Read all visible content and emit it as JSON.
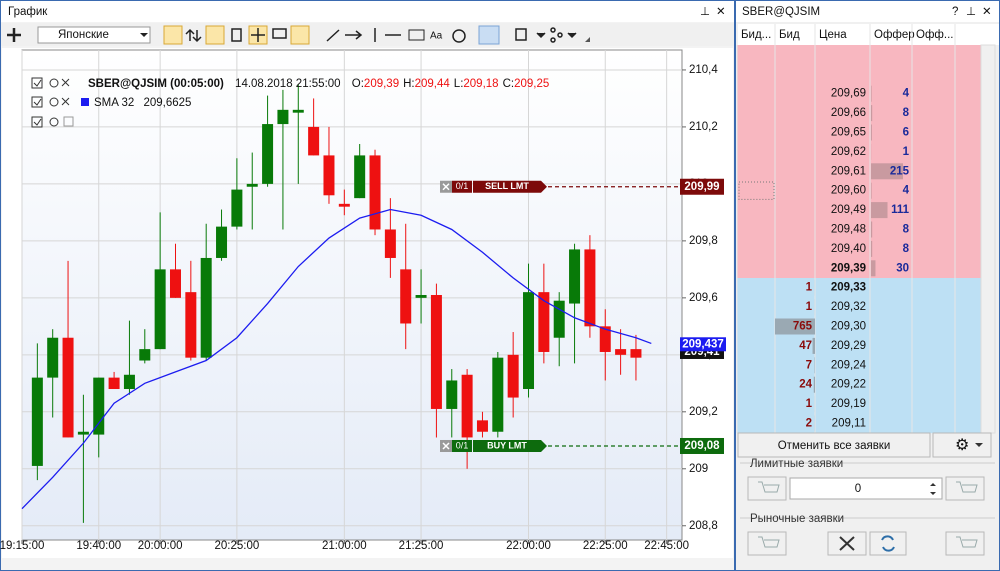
{
  "chart_window": {
    "title": "График",
    "chart_style": "Японские"
  },
  "chart_data": {
    "type": "candlestick",
    "header": {
      "instrument": "SBER@QJSIM (00:05:00)",
      "datetime": "14.08.2018 21:55:00",
      "ohlc": [
        {
          "key": "O:",
          "value": "209,39"
        },
        {
          "key": "H:",
          "value": "209,44"
        },
        {
          "key": "L:",
          "value": "209,18"
        },
        {
          "key": "C:",
          "value": "209,25"
        }
      ]
    },
    "x": [
      1,
      2,
      3,
      4,
      5,
      6,
      7,
      8,
      9,
      10,
      11,
      12,
      13,
      14,
      15,
      16,
      17,
      18,
      19,
      20,
      21,
      22,
      23,
      24,
      25,
      26,
      27,
      28,
      29,
      30,
      31,
      32,
      33,
      34,
      35,
      36,
      37,
      38,
      39,
      40
    ],
    "open": [
      209.01,
      209.32,
      209.46,
      209.12,
      209.12,
      209.32,
      209.28,
      209.38,
      209.42,
      209.7,
      209.62,
      209.39,
      209.74,
      209.85,
      209.99,
      210.0,
      210.21,
      210.25,
      210.2,
      210.1,
      209.93,
      209.95,
      210.1,
      209.84,
      209.7,
      209.6,
      209.61,
      209.21,
      209.33,
      209.17,
      209.13,
      209.4,
      209.28,
      209.62,
      209.46,
      209.58,
      209.77,
      209.5,
      209.42,
      209.42
    ],
    "high": [
      209.44,
      209.49,
      209.73,
      209.26,
      209.32,
      209.34,
      209.52,
      209.49,
      209.9,
      209.79,
      209.73,
      209.86,
      209.91,
      210.09,
      210.11,
      210.31,
      210.33,
      210.35,
      210.3,
      210.2,
      209.98,
      210.14,
      210.12,
      209.95,
      209.86,
      209.7,
      209.65,
      209.35,
      209.35,
      209.2,
      209.41,
      209.48,
      209.72,
      209.72,
      209.62,
      209.79,
      209.82,
      209.56,
      209.49,
      209.47
    ],
    "low": [
      208.96,
      209.18,
      209.11,
      208.81,
      209.04,
      209.28,
      209.26,
      209.37,
      209.42,
      209.6,
      209.38,
      209.38,
      209.73,
      209.84,
      209.84,
      209.99,
      209.84,
      210.0,
      210.1,
      209.93,
      209.89,
      209.95,
      209.82,
      209.67,
      209.42,
      209.51,
      209.11,
      209.11,
      209.0,
      209.11,
      209.11,
      209.18,
      209.25,
      209.37,
      209.36,
      209.37,
      209.46,
      209.31,
      209.33,
      209.31
    ],
    "close": [
      209.32,
      209.46,
      209.11,
      209.13,
      209.32,
      209.28,
      209.33,
      209.42,
      209.7,
      209.6,
      209.39,
      209.74,
      209.85,
      209.98,
      210.0,
      210.21,
      210.26,
      210.26,
      210.1,
      209.96,
      209.92,
      210.1,
      209.84,
      209.74,
      209.51,
      209.61,
      209.21,
      209.31,
      209.11,
      209.13,
      209.39,
      209.25,
      209.62,
      209.41,
      209.59,
      209.77,
      209.5,
      209.41,
      209.4,
      209.39
    ],
    "up_color": "#087a08",
    "down_color": "#ee1111",
    "indicator": {
      "name": "SMA 32",
      "value": "209,6625",
      "color": "#1c1cf0",
      "x": [
        0,
        2,
        4,
        6,
        8,
        10,
        12,
        14,
        16,
        18,
        20,
        22,
        24,
        26,
        28,
        30,
        32,
        34,
        36,
        38,
        40,
        41
      ],
      "values": [
        208.86,
        208.97,
        209.09,
        209.23,
        209.3,
        209.34,
        209.38,
        209.46,
        209.58,
        209.71,
        209.81,
        209.88,
        209.91,
        209.89,
        209.84,
        209.76,
        209.67,
        209.59,
        209.53,
        209.49,
        209.46,
        209.44
      ],
      "last": {
        "value": 209.437,
        "label": "209,437"
      }
    },
    "last_price": {
      "value": 209.41,
      "label": "209,41"
    },
    "orders": [
      {
        "count": "0/1",
        "side": "SELL LMT",
        "price": 209.99,
        "price_label": "209,99",
        "color": "#7d0a0a"
      },
      {
        "count": "0/1",
        "side": "BUY LMT",
        "price": 209.08,
        "price_label": "209,08",
        "color": "#0d6b0d"
      }
    ],
    "xlim": [
      0,
      43
    ],
    "xticks": [
      {
        "value": 0,
        "label": "19:15:00"
      },
      {
        "value": 5,
        "label": "19:40:00"
      },
      {
        "value": 9,
        "label": "20:00:00"
      },
      {
        "value": 14,
        "label": "20:25:00"
      },
      {
        "value": 21,
        "label": "21:00:00"
      },
      {
        "value": 26,
        "label": "21:25:00"
      },
      {
        "value": 33,
        "label": "22:00:00"
      },
      {
        "value": 38,
        "label": "22:25:00"
      },
      {
        "value": 42,
        "label": "22:45:00"
      }
    ],
    "ylim": [
      208.75,
      210.47
    ],
    "yticks": [
      {
        "value": 208.8,
        "label": "208,8"
      },
      209,
      {
        "value": 209.2,
        "label": "209,2"
      },
      {
        "value": 209.4,
        "label": "209,4"
      },
      {
        "value": 209.6,
        "label": "209,6"
      },
      {
        "value": 209.8,
        "label": "209,8"
      },
      {
        "value": 210.0,
        "label": "210"
      },
      {
        "value": 210.2,
        "label": "210,2"
      },
      {
        "value": 210.4,
        "label": "210,4"
      }
    ],
    "grid": true
  },
  "order_book": {
    "title": "SBER@QJSIM",
    "columns": [
      "Бид...",
      "Бид",
      "Цена",
      "Оффер",
      "Офф..."
    ],
    "asks": [
      {
        "price": "209,69",
        "offer": 4
      },
      {
        "price": "209,66",
        "offer": 8
      },
      {
        "price": "209,65",
        "offer": 6
      },
      {
        "price": "209,62",
        "offer": 1
      },
      {
        "price": "209,61",
        "offer": 215
      },
      {
        "price": "209,60",
        "offer": 4
      },
      {
        "price": "209,49",
        "offer": 111
      },
      {
        "price": "209,48",
        "offer": 8
      },
      {
        "price": "209,40",
        "offer": 8
      },
      {
        "price": "209,39",
        "offer": 30
      }
    ],
    "bids": [
      {
        "price": "209,33",
        "bid": 1
      },
      {
        "price": "209,32",
        "bid": 1
      },
      {
        "price": "209,30",
        "bid": 765
      },
      {
        "price": "209,29",
        "bid": 47
      },
      {
        "price": "209,24",
        "bid": 7
      },
      {
        "price": "209,22",
        "bid": 24
      },
      {
        "price": "209,19",
        "bid": 1
      },
      {
        "price": "209,11",
        "bid": 2
      }
    ]
  },
  "controls": {
    "cancel_all": "Отменить все заявки",
    "limit_title": "Лимитные заявки",
    "quantity": 0,
    "market_title": "Рыночные заявки"
  }
}
